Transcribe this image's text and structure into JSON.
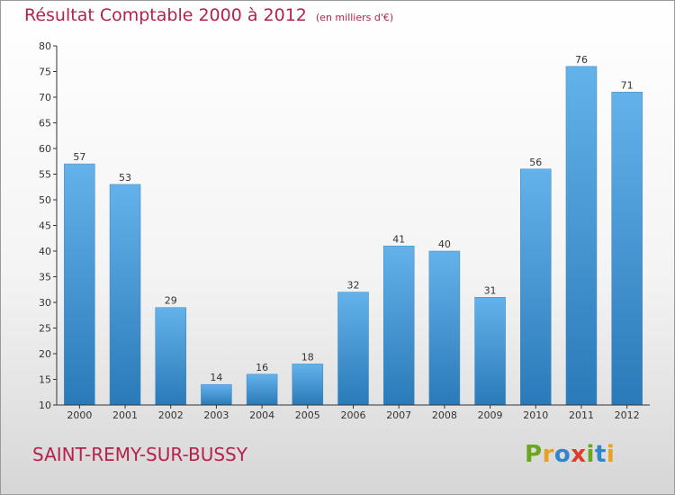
{
  "title": "Résultat Comptable 2000 à 2012",
  "unit": "(en milliers d'€)",
  "commune": "SAINT-REMY-SUR-BUSSY",
  "logo": {
    "text": "Proxiti",
    "letters": [
      {
        "char": "P",
        "color": "#6aa61e"
      },
      {
        "char": "r",
        "color": "#e8a020"
      },
      {
        "char": "o",
        "color": "#2f86c8"
      },
      {
        "char": "x",
        "color": "#e03a2a"
      },
      {
        "char": "i",
        "color": "#6aa61e"
      },
      {
        "char": "t",
        "color": "#2f86c8"
      },
      {
        "char": "i",
        "color": "#e8a020"
      }
    ]
  },
  "colors": {
    "title": "#b5224a",
    "bar_top": "#64b2ea",
    "bar_bottom": "#2a7ab9",
    "axis": "#333333"
  },
  "chart_data": {
    "type": "bar",
    "title": "Résultat Comptable 2000 à 2012",
    "xlabel": "",
    "ylabel": "",
    "ylim": [
      10,
      80
    ],
    "yticks": [
      10,
      15,
      20,
      25,
      30,
      35,
      40,
      45,
      50,
      55,
      60,
      65,
      70,
      75,
      80
    ],
    "grid": false,
    "categories": [
      "2000",
      "2001",
      "2002",
      "2003",
      "2004",
      "2005",
      "2006",
      "2007",
      "2008",
      "2009",
      "2010",
      "2011",
      "2012"
    ],
    "values": [
      57,
      53,
      29,
      14,
      16,
      18,
      32,
      41,
      40,
      31,
      56,
      76,
      71
    ]
  }
}
